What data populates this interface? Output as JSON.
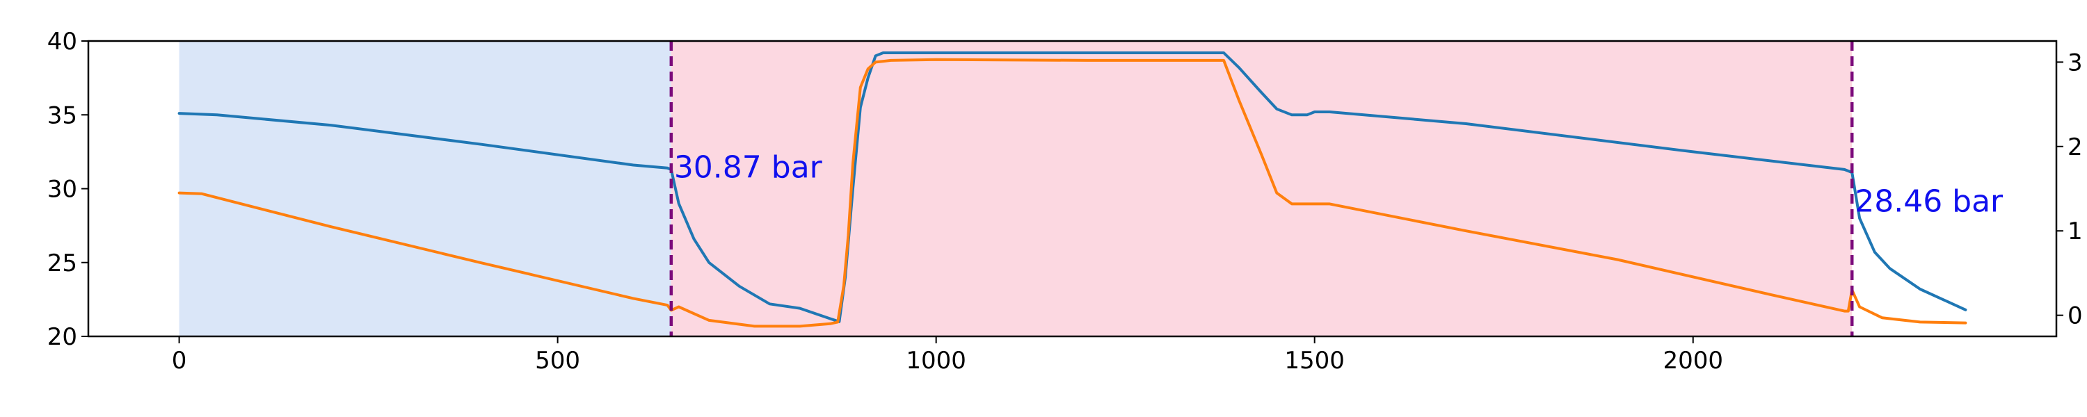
{
  "chart_data": {
    "type": "line",
    "title": "",
    "xlabel": "",
    "ylabel": "",
    "y2label": "",
    "xlim": [
      -120,
      2480
    ],
    "ylim": [
      20,
      40
    ],
    "y2lim": [
      -0.25,
      3.25
    ],
    "grid": false,
    "legend": "none",
    "x_ticks": [
      0,
      500,
      1000,
      1500,
      2000
    ],
    "y_ticks": [
      20,
      25,
      30,
      35,
      40
    ],
    "y2_ticks": [
      0,
      1,
      2,
      3
    ],
    "shaded_regions": [
      {
        "x0": 0,
        "x1": 650,
        "color": "#dae6f8"
      },
      {
        "x0": 650,
        "x1": 2210,
        "color": "#fcd8e1"
      }
    ],
    "vlines": [
      {
        "x": 650,
        "color": "#7b0a7b",
        "style": "dashed"
      },
      {
        "x": 2210,
        "color": "#7b0a7b",
        "style": "dashed"
      }
    ],
    "annotations": [
      {
        "text": "30.87 bar",
        "x": 650,
        "y": 31.5,
        "color": "#1010ee"
      },
      {
        "text": "28.46 bar",
        "x": 2210,
        "y": 29.2,
        "color": "#1010ee"
      }
    ],
    "series": [
      {
        "color": "#1f77b4",
        "axis": "left",
        "x": [
          0,
          50,
          200,
          400,
          600,
          645,
          650,
          660,
          680,
          700,
          740,
          780,
          820,
          860,
          872,
          880,
          890,
          900,
          910,
          920,
          930,
          950,
          1100,
          1300,
          1380,
          1400,
          1430,
          1450,
          1470,
          1490,
          1500,
          1520,
          1700,
          2000,
          2200,
          2205,
          2210,
          2220,
          2240,
          2260,
          2300,
          2360
        ],
        "y": [
          35.1,
          35.0,
          34.3,
          33.0,
          31.6,
          31.4,
          31.3,
          29.0,
          26.6,
          25.0,
          23.4,
          22.2,
          21.9,
          21.2,
          21.0,
          24.0,
          30.0,
          35.5,
          37.5,
          39.0,
          39.2,
          39.2,
          39.2,
          39.2,
          39.2,
          38.2,
          36.5,
          35.4,
          35.0,
          35.0,
          35.2,
          35.2,
          34.4,
          32.5,
          31.3,
          31.2,
          31.1,
          28.0,
          25.7,
          24.6,
          23.2,
          21.8
        ]
      },
      {
        "color": "#ff7f0e",
        "axis": "right",
        "x": [
          0,
          30,
          200,
          400,
          600,
          645,
          650,
          660,
          700,
          760,
          820,
          860,
          870,
          878,
          884,
          890,
          900,
          910,
          920,
          940,
          1000,
          1200,
          1380,
          1400,
          1430,
          1450,
          1470,
          1500,
          1520,
          1700,
          1900,
          2100,
          2200,
          2205,
          2210,
          2220,
          2250,
          2300,
          2360
        ],
        "y": [
          1.45,
          1.44,
          1.05,
          0.62,
          0.2,
          0.12,
          0.06,
          0.1,
          -0.06,
          -0.13,
          -0.13,
          -0.1,
          -0.08,
          0.35,
          0.95,
          1.8,
          2.7,
          2.92,
          3.0,
          3.02,
          3.03,
          3.02,
          3.02,
          2.55,
          1.9,
          1.45,
          1.32,
          1.32,
          1.32,
          1.0,
          0.66,
          0.25,
          0.05,
          0.05,
          0.3,
          0.1,
          -0.03,
          -0.08,
          -0.09
        ]
      }
    ]
  }
}
